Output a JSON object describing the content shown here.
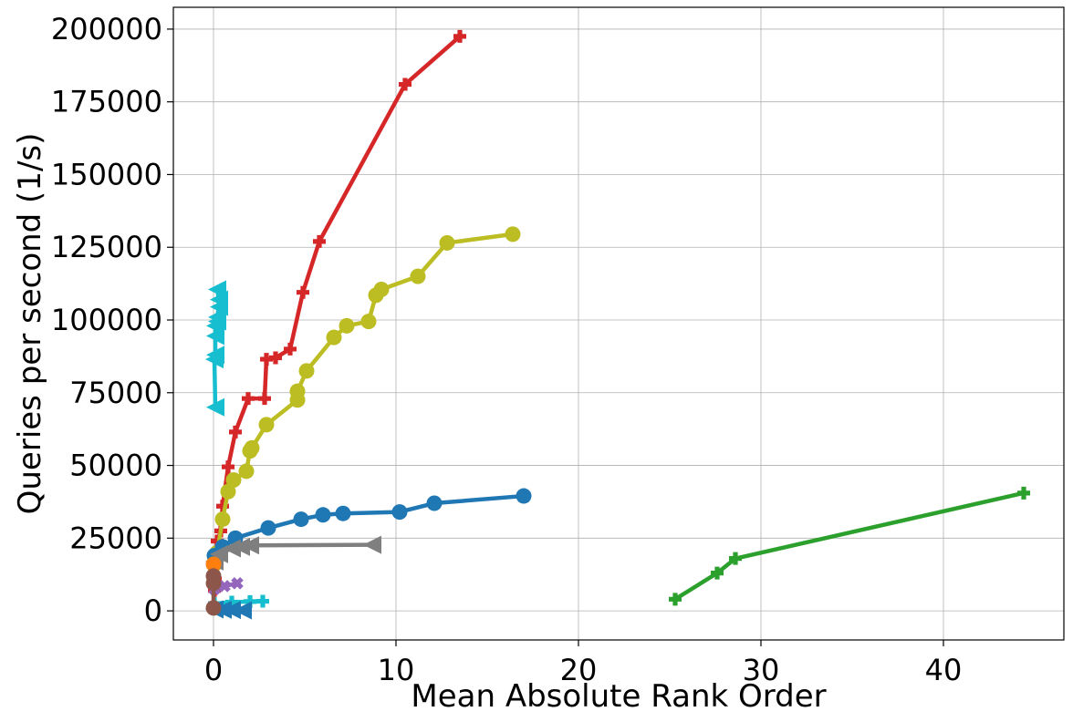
{
  "chart_data": {
    "type": "line",
    "title": "",
    "xlabel": "Mean Absolute Rank Order",
    "ylabel": "Queries per second (1/s)",
    "xlim": [
      -2.2,
      46.6
    ],
    "ylim": [
      -10000,
      207500
    ],
    "xticks": [
      0,
      10,
      20,
      30,
      40
    ],
    "yticks": [
      0,
      25000,
      50000,
      75000,
      100000,
      125000,
      150000,
      175000,
      200000
    ],
    "grid": true,
    "legend": "none",
    "series": [
      {
        "color": "#d62728",
        "marker": "plus-filled",
        "points": [
          [
            0.05,
            7000
          ],
          [
            0.1,
            11000
          ],
          [
            0.1,
            20000
          ],
          [
            0.2,
            24000
          ],
          [
            0.4,
            27500
          ],
          [
            0.5,
            36000
          ],
          [
            0.8,
            49500
          ],
          [
            1.2,
            61500
          ],
          [
            1.9,
            73000
          ],
          [
            2.8,
            73000
          ],
          [
            2.9,
            86500
          ],
          [
            3.4,
            87000
          ],
          [
            4.2,
            90000
          ],
          [
            4.9,
            109500
          ],
          [
            5.8,
            127000
          ],
          [
            10.5,
            181000
          ],
          [
            13.5,
            197500
          ]
        ]
      },
      {
        "color": "#bcbd22",
        "marker": "circle",
        "points": [
          [
            0.05,
            16000
          ],
          [
            0.2,
            20000
          ],
          [
            0.5,
            31500
          ],
          [
            0.8,
            41000
          ],
          [
            1.1,
            45000
          ],
          [
            1.8,
            48000
          ],
          [
            2.0,
            55000
          ],
          [
            2.1,
            56000
          ],
          [
            2.9,
            64000
          ],
          [
            4.6,
            72500
          ],
          [
            4.6,
            75500
          ],
          [
            5.1,
            82500
          ],
          [
            6.6,
            94000
          ],
          [
            7.3,
            98000
          ],
          [
            8.5,
            99500
          ],
          [
            8.9,
            108500
          ],
          [
            9.2,
            110500
          ],
          [
            11.2,
            115000
          ],
          [
            12.8,
            126500
          ],
          [
            16.4,
            129500
          ]
        ]
      },
      {
        "color": "#1f77b4",
        "marker": "circle",
        "points": [
          [
            0.05,
            19000
          ],
          [
            0.5,
            22000
          ],
          [
            1.2,
            25000
          ],
          [
            3.0,
            28500
          ],
          [
            4.8,
            31500
          ],
          [
            6.0,
            33000
          ],
          [
            7.1,
            33500
          ],
          [
            10.2,
            34000
          ],
          [
            12.1,
            37000
          ],
          [
            17.0,
            39500
          ]
        ]
      },
      {
        "color": "#2ca02c",
        "marker": "plus-filled",
        "points": [
          [
            25.3,
            4000
          ],
          [
            27.6,
            13000
          ],
          [
            28.6,
            18000
          ],
          [
            44.4,
            40500
          ]
        ]
      },
      {
        "color": "#17becf",
        "marker": "triangle-left",
        "points": [
          [
            0.1,
            70000
          ],
          [
            0.05,
            86500
          ],
          [
            0.1,
            88000
          ],
          [
            0.1,
            94500
          ],
          [
            0.1,
            98000
          ],
          [
            0.2,
            99500
          ],
          [
            0.2,
            101000
          ],
          [
            0.3,
            104500
          ],
          [
            0.3,
            107000
          ],
          [
            0.2,
            110500
          ]
        ]
      },
      {
        "color": "#7f7f7f",
        "marker": "triangle-left",
        "points": [
          [
            0.05,
            17000
          ],
          [
            0.3,
            19500
          ],
          [
            1.0,
            21500
          ],
          [
            1.5,
            22000
          ],
          [
            2.0,
            22500
          ],
          [
            8.7,
            22700
          ]
        ]
      },
      {
        "color": "#9467bd",
        "marker": "x",
        "points": [
          [
            0.05,
            7500
          ],
          [
            0.6,
            8500
          ],
          [
            1.3,
            9500
          ]
        ]
      },
      {
        "color": "#17becf",
        "marker": "plus-filled",
        "points": [
          [
            0.05,
            2500
          ],
          [
            1.0,
            3000
          ],
          [
            2.0,
            3200
          ],
          [
            2.7,
            3300
          ]
        ]
      },
      {
        "color": "#1f77b4",
        "marker": "triangle-left",
        "points": [
          [
            0.05,
            500
          ],
          [
            0.5,
            400
          ],
          [
            1.0,
            300
          ],
          [
            1.6,
            200
          ]
        ]
      },
      {
        "color": "#ff7f0e",
        "marker": "circle",
        "points": [
          [
            0.0,
            16000
          ]
        ]
      },
      {
        "color": "#8c564b",
        "marker": "circle",
        "points": [
          [
            0.0,
            9500
          ],
          [
            0.0,
            12000
          ],
          [
            0.0,
            1000
          ]
        ]
      }
    ]
  }
}
